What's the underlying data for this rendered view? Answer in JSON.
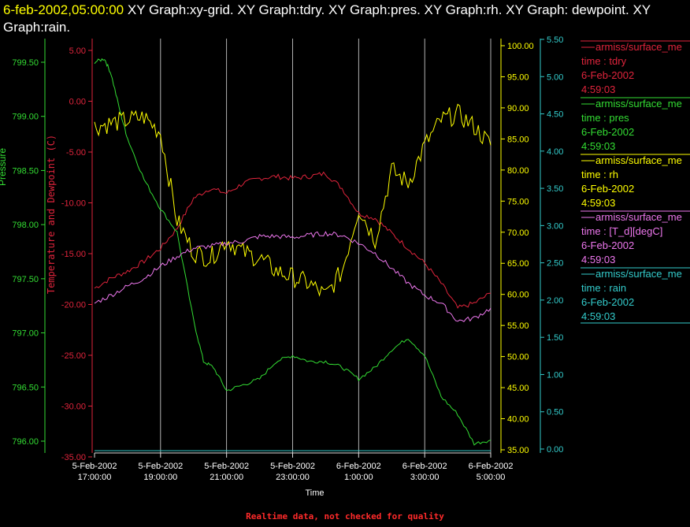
{
  "header": {
    "timestamp": "6-feb-2002,05:00:00",
    "graphs": "XY Graph:xy-grid.  XY Graph:tdry.  XY Graph:pres.  XY Graph:rh.  XY Graph: dewpoint.  XY Graph:rain."
  },
  "footer": {
    "note": "Realtime data, not checked for quality",
    "color": "#ff2a2a"
  },
  "colors": {
    "tdry": "#e0243c",
    "pres": "#33dd33",
    "rh": "#ffff00",
    "dewpoint": "#ee77ee",
    "rain": "#33cccc",
    "grid": "#dddddd",
    "axis_text": "#ffffff"
  },
  "chart_data": {
    "type": "line",
    "xlabel": "Time",
    "x_ticks": [
      [
        "5-Feb-2002",
        "17:00:00"
      ],
      [
        "5-Feb-2002",
        "19:00:00"
      ],
      [
        "5-Feb-2002",
        "21:00:00"
      ],
      [
        "5-Feb-2002",
        "23:00:00"
      ],
      [
        "6-Feb-2002",
        "1:00:00"
      ],
      [
        "6-Feb-2002",
        "3:00:00"
      ],
      [
        "6-Feb-2002",
        "5:00:00"
      ]
    ],
    "x_hours": [
      0,
      2,
      4,
      6,
      8,
      10,
      12
    ],
    "xlim_hours": [
      0,
      12
    ],
    "axes": {
      "pressure": {
        "label": "Pressure",
        "ylim": [
          795.97,
          799.5
        ],
        "ticks": [
          "799.50",
          "799.00",
          "798.50",
          "798.00",
          "797.50",
          "797.00",
          "796.50",
          "796.00"
        ]
      },
      "temperature": {
        "label": "Temperature and Dewpoint (C)",
        "ylim": [
          -35,
          6.5
        ],
        "ticks": [
          "5.00",
          "0.00",
          "-5.00",
          "-10.00",
          "-15.00",
          "-20.00",
          "-25.00",
          "-30.00",
          "-35.00"
        ]
      },
      "rh": {
        "ylim": [
          35,
          101
        ],
        "ticks": [
          "100.00",
          "95.00",
          "90.00",
          "85.00",
          "80.00",
          "75.00",
          "70.00",
          "65.00",
          "60.00",
          "55.00",
          "50.00",
          "45.00",
          "40.00",
          "35.00"
        ]
      },
      "rain": {
        "ylim": [
          -0.03,
          5.5
        ],
        "ticks": [
          "5.50",
          "5.00",
          "4.50",
          "4.00",
          "3.50",
          "3.00",
          "2.50",
          "2.00",
          "1.50",
          "1.00",
          "0.50",
          "0.00"
        ]
      }
    },
    "series": [
      {
        "name": "tdry",
        "axis": "temperature",
        "x": [
          0,
          0.5,
          1,
          1.5,
          2,
          2.5,
          3,
          3.5,
          4,
          4.5,
          5,
          5.5,
          6,
          6.5,
          7,
          7.5,
          8,
          8.5,
          9,
          9.5,
          10,
          10.5,
          11,
          11.5,
          12
        ],
        "y": [
          -18.5,
          -17.5,
          -16.8,
          -15.8,
          -14.5,
          -12.5,
          -9.5,
          -8.5,
          -9,
          -8,
          -7.5,
          -7.3,
          -7.5,
          -7.3,
          -7,
          -8.5,
          -11,
          -11.5,
          -13,
          -14.5,
          -16,
          -18,
          -20.5,
          -20,
          -19
        ]
      },
      {
        "name": "pres",
        "axis": "pressure",
        "x": [
          0,
          0.3,
          0.5,
          0.8,
          1,
          1.5,
          2,
          2.5,
          3,
          3.3,
          3.6,
          4,
          4.5,
          5,
          5.5,
          6,
          6.5,
          7,
          7.5,
          8,
          8.5,
          9,
          9.5,
          10,
          10.5,
          11,
          11.5,
          12
        ],
        "y": [
          799.3,
          799.33,
          799.2,
          798.85,
          798.65,
          798.3,
          798.05,
          797.85,
          797.1,
          796.75,
          796.7,
          796.5,
          796.55,
          796.6,
          796.75,
          796.8,
          796.75,
          796.75,
          796.7,
          796.6,
          796.7,
          796.85,
          796.95,
          796.8,
          796.45,
          796.3,
          796.05,
          796.08
        ]
      },
      {
        "name": "rh",
        "axis": "rh",
        "x": [
          0,
          0.5,
          1,
          1.5,
          2,
          2.5,
          3,
          3.5,
          4,
          4.5,
          5,
          5.5,
          6,
          6.5,
          7,
          7.5,
          8,
          8.5,
          9,
          9.5,
          10,
          10.5,
          11,
          11.5,
          12
        ],
        "y": [
          87,
          87.5,
          88,
          88.5,
          86,
          72,
          67,
          66,
          69,
          67,
          66,
          64,
          63,
          62,
          60,
          64,
          74,
          69,
          80,
          78,
          84,
          88,
          89,
          87,
          84
        ]
      },
      {
        "name": "[T_d][degC]",
        "axis": "temperature",
        "x": [
          0,
          0.5,
          1,
          1.5,
          2,
          2.5,
          3,
          3.5,
          4,
          4.5,
          5,
          5.5,
          6,
          6.5,
          7,
          7.5,
          8,
          8.5,
          9,
          9.5,
          10,
          10.5,
          11,
          11.5,
          12
        ],
        "y": [
          -20,
          -19.2,
          -18.3,
          -17.5,
          -16.3,
          -15.3,
          -14.5,
          -14.3,
          -14,
          -13.8,
          -13.3,
          -13.3,
          -13.4,
          -13.2,
          -13,
          -13.2,
          -14,
          -15,
          -16.5,
          -18,
          -19.2,
          -20,
          -21.8,
          -21.5,
          -20.5
        ]
      },
      {
        "name": "rain",
        "axis": "rain",
        "x": [
          0,
          12
        ],
        "y": [
          0,
          0
        ]
      }
    ]
  },
  "legend": [
    {
      "source": "armiss/surface_me",
      "line1": "time : tdry",
      "date": "6-Feb-2002",
      "time": "4:59:03",
      "color": "#e0243c"
    },
    {
      "source": "armiss/surface_me",
      "line1": "time : pres",
      "date": "6-Feb-2002",
      "time": "4:59:03",
      "color": "#33dd33"
    },
    {
      "source": "armiss/surface_me",
      "line1": "time : rh",
      "date": "6-Feb-2002",
      "time": "4:59:03",
      "color": "#ffff00"
    },
    {
      "source": "armiss/surface_me",
      "line1": "time : [T_d][degC]",
      "date": "6-Feb-2002",
      "time": "4:59:03",
      "color": "#ee77ee"
    },
    {
      "source": "armiss/surface_me",
      "line1": "time : rain",
      "date": "6-Feb-2002",
      "time": "4:59:03",
      "color": "#33cccc"
    }
  ]
}
